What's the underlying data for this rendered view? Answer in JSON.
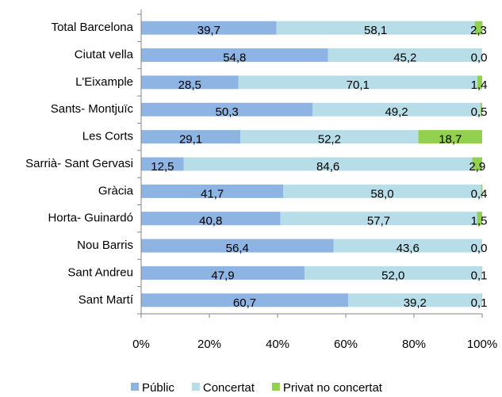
{
  "chart_data": {
    "type": "stacked_barh",
    "categories": [
      "Total Barcelona",
      "Ciutat vella",
      "L'Eixample",
      "Sants- Montjuïc",
      "Les Corts",
      "Sarrià- Sant Gervasi",
      "Gràcia",
      "Horta- Guinardó",
      "Nou Barris",
      "Sant Andreu",
      "Sant Martí"
    ],
    "series": [
      {
        "name": "Públic",
        "color": "#8eb4e3",
        "values": [
          39.7,
          54.8,
          28.5,
          50.3,
          29.1,
          12.5,
          41.7,
          40.8,
          56.4,
          47.9,
          60.7
        ],
        "value_labels": [
          "39,7",
          "54,8",
          "28,5",
          "50,3",
          "29,1",
          "12,5",
          "41,7",
          "40,8",
          "56,4",
          "47,9",
          "60,7"
        ]
      },
      {
        "name": "Concertat",
        "color": "#b7dee8",
        "values": [
          58.1,
          45.2,
          70.1,
          49.2,
          52.2,
          84.6,
          58.0,
          57.7,
          43.6,
          52.0,
          39.2
        ],
        "value_labels": [
          "58,1",
          "45,2",
          "70,1",
          "49,2",
          "52,2",
          "84,6",
          "58,0",
          "57,7",
          "43,6",
          "52,0",
          "39,2"
        ]
      },
      {
        "name": "Privat no concertat",
        "color": "#92d050",
        "values": [
          2.3,
          0.0,
          1.4,
          0.5,
          18.7,
          2.9,
          0.4,
          1.5,
          0.0,
          0.1,
          0.1
        ],
        "value_labels": [
          "2,3",
          "0,0",
          "1,4",
          "0,5",
          "18,7",
          "2,9",
          "0,4",
          "1,5",
          "0,0",
          "0,1",
          "0,1"
        ]
      }
    ],
    "xlim": [
      0,
      100
    ],
    "xticks": [
      {
        "value": 0,
        "label": "0%"
      },
      {
        "value": 20,
        "label": "20%"
      },
      {
        "value": 40,
        "label": "40%"
      },
      {
        "value": 60,
        "label": "60%"
      },
      {
        "value": 80,
        "label": "80%"
      },
      {
        "value": 100,
        "label": "100%"
      }
    ],
    "legend": "bottom"
  }
}
